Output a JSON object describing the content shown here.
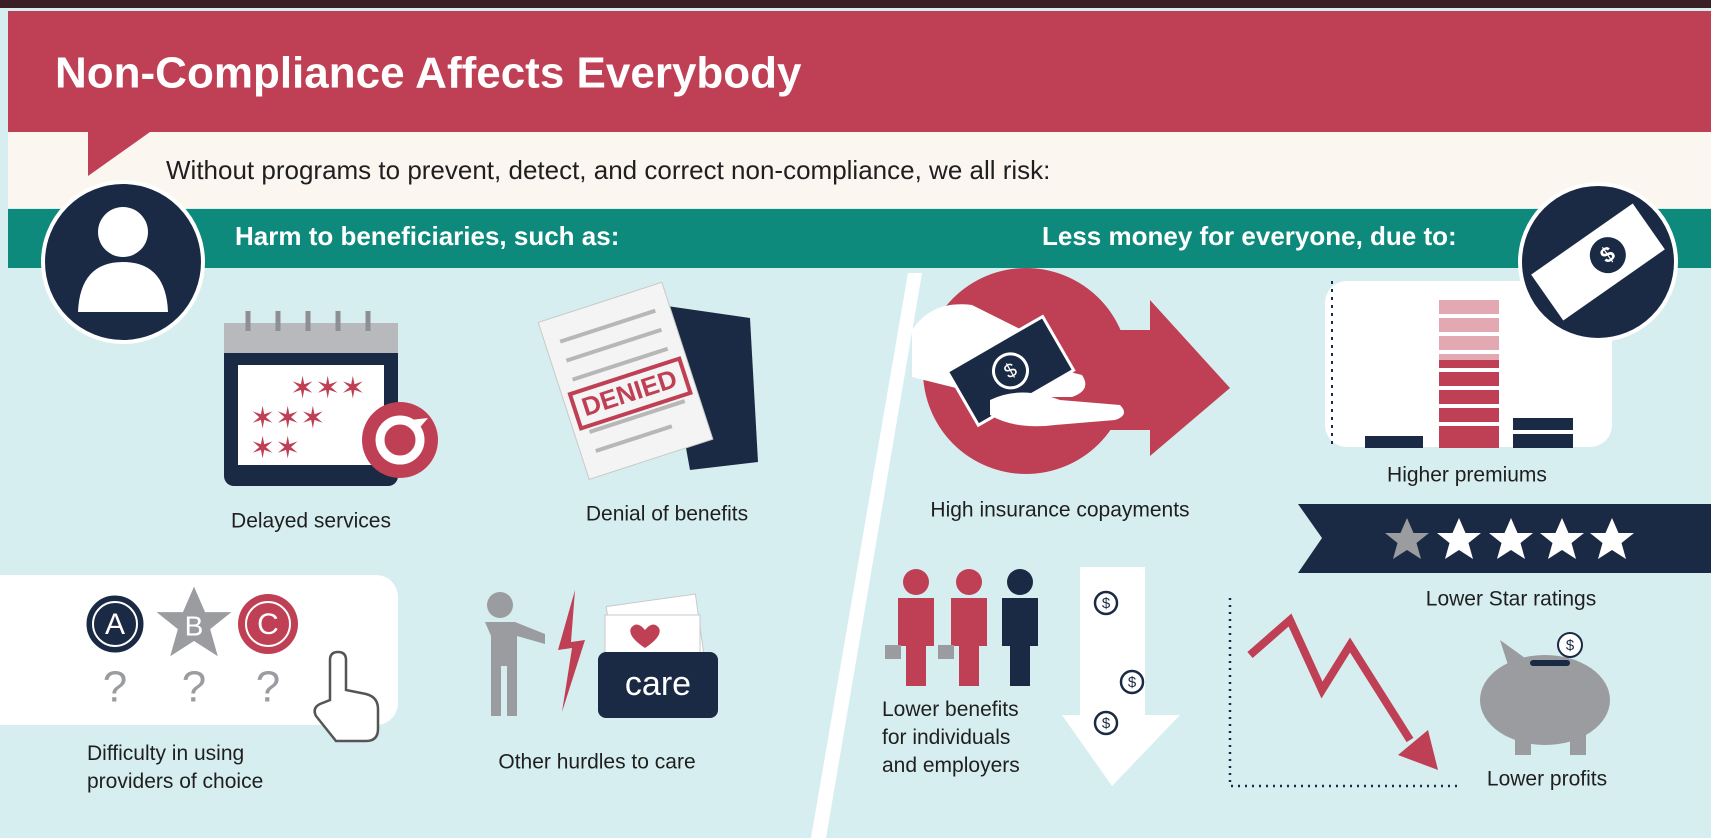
{
  "header": {
    "title": "Non-Compliance Affects Everybody",
    "subtitle": "Without programs to prevent, detect, and correct non-compliance, we all risk:"
  },
  "left": {
    "heading": "Harm to beneficiaries, such as:",
    "items": [
      "Delayed services",
      "Denial of benefits",
      "Difficulty in using providers of choice",
      "Other hurdles to care"
    ]
  },
  "right": {
    "heading": "Less money for everyone, due to:",
    "items": [
      "High insurance copayments",
      "Higher premiums",
      "Lower Star ratings",
      "Lower benefits for individuals and employers",
      "Lower profits"
    ]
  },
  "icons": {
    "stamp": "DENIED",
    "choices": [
      "A",
      "B",
      "C"
    ],
    "question": "?",
    "card": "care",
    "money": "$"
  }
}
